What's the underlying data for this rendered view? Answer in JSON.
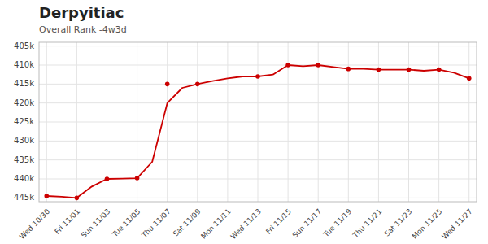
{
  "chart_data": {
    "type": "line",
    "title": "Derpyitiac",
    "subtitle": "Overall Rank -4w3d",
    "categories": [
      "Wed 10/30",
      null,
      "Fri 11/01",
      null,
      "Sun 11/03",
      null,
      "Tue 11/05",
      null,
      "Thu 11/07",
      null,
      "Sat 11/09",
      null,
      "Mon 11/11",
      null,
      "Wed 11/13",
      null,
      "Fri 11/15",
      null,
      "Sun 11/17",
      null,
      "Tue 11/19",
      null,
      "Thu 11/21",
      null,
      "Sat 11/23",
      null,
      "Mon 11/25",
      null,
      "Wed 11/27"
    ],
    "series": [
      {
        "type": "line",
        "color": "#cc0000",
        "values": [
          444500,
          444700,
          445000,
          442000,
          440000,
          439900,
          439800,
          435500,
          420000,
          416000,
          415000,
          414200,
          413500,
          413000,
          413000,
          412500,
          410000,
          410300,
          410000,
          410500,
          411000,
          411000,
          411200,
          411200,
          411200,
          411500,
          411200,
          412000,
          413500
        ]
      },
      {
        "type": "scatter",
        "color": "#cc0000",
        "marker": "circle",
        "values": [
          444500,
          null,
          445000,
          null,
          440000,
          null,
          439800,
          null,
          415000,
          null,
          415000,
          null,
          null,
          null,
          413000,
          null,
          410000,
          null,
          410000,
          null,
          411000,
          null,
          411200,
          null,
          411200,
          null,
          411200,
          null,
          413500
        ]
      }
    ],
    "ylim": [
      446000,
      404000
    ],
    "yticks": [
      {
        "value": 405000,
        "label": "405k"
      },
      {
        "value": 410000,
        "label": "410k"
      },
      {
        "value": 415000,
        "label": "415k"
      },
      {
        "value": 420000,
        "label": "420k"
      },
      {
        "value": 425000,
        "label": "425k"
      },
      {
        "value": 430000,
        "label": "430k"
      },
      {
        "value": 435000,
        "label": "435k"
      },
      {
        "value": 440000,
        "label": "440k"
      },
      {
        "value": 445000,
        "label": "445k"
      }
    ],
    "grid": true
  }
}
